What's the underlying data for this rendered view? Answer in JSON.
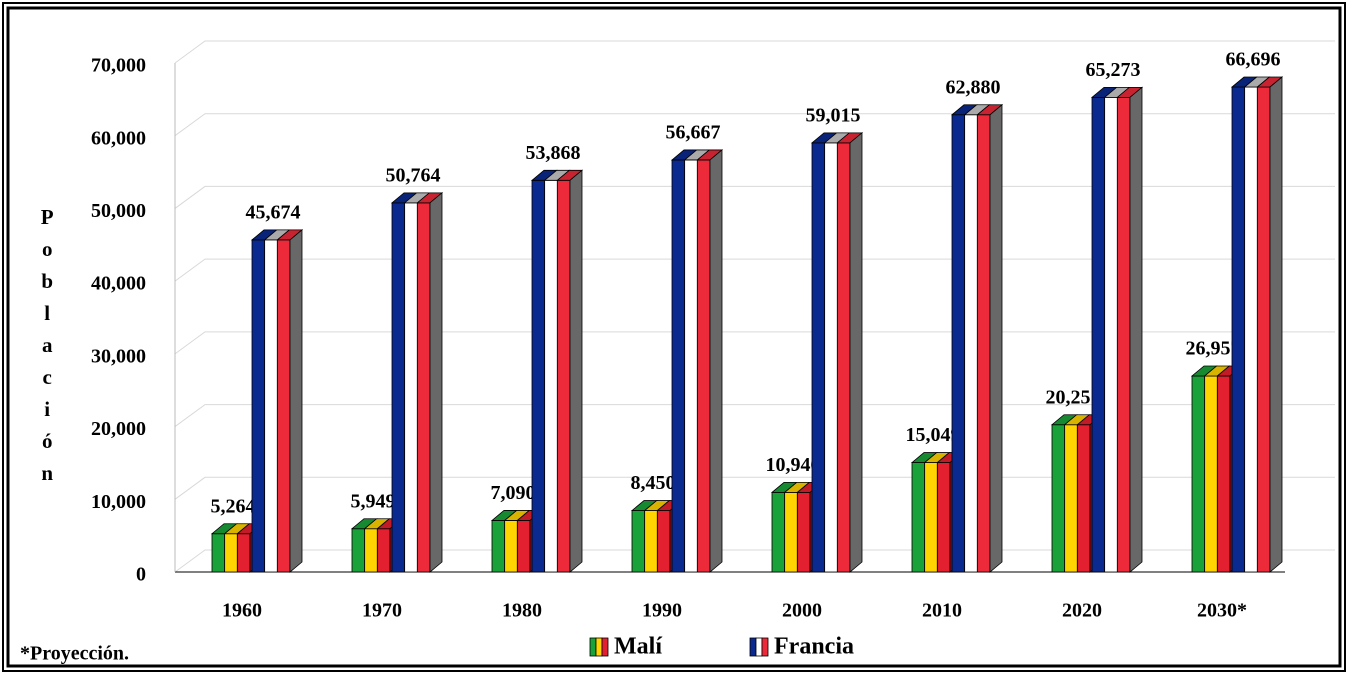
{
  "chart_data": {
    "type": "bar3d",
    "y_label": "Población",
    "note": "*Proyección.",
    "categories": [
      "1960",
      "1970",
      "1980",
      "1990",
      "2000",
      "2010",
      "2020",
      "2030*"
    ],
    "series": [
      {
        "name": "Malí",
        "colors": [
          "#1aa23a",
          "#ffd400",
          "#e3202f"
        ],
        "values": [
          5264,
          5949,
          7090,
          8450,
          10946,
          15049,
          20251,
          26957
        ],
        "value_labels": [
          "5,264",
          "5,949",
          "7,090",
          "8,450",
          "10,946",
          "15,049",
          "20,251",
          "26,957"
        ]
      },
      {
        "name": "Francia",
        "colors": [
          "#0b2a8f",
          "#ffffff",
          "#ec2a3a"
        ],
        "values": [
          45674,
          50764,
          53868,
          56667,
          59015,
          62880,
          65273,
          66696
        ],
        "value_labels": [
          "45,674",
          "50,764",
          "53,868",
          "56,667",
          "59,015",
          "62,880",
          "65,273",
          "66,696"
        ]
      }
    ],
    "ylim": [
      0,
      70000
    ],
    "yticks": [
      0,
      {
        "value": 10000,
        "label": "10,000"
      },
      {
        "value": 20000,
        "label": "20,000"
      },
      {
        "value": 30000,
        "label": "30,000"
      },
      {
        "value": 40000,
        "label": "40,000"
      },
      {
        "value": 50000,
        "label": "50,000"
      },
      {
        "value": 60000,
        "label": "60,000"
      },
      {
        "value": 70000,
        "label": "70,000"
      }
    ],
    "grid": true
  }
}
